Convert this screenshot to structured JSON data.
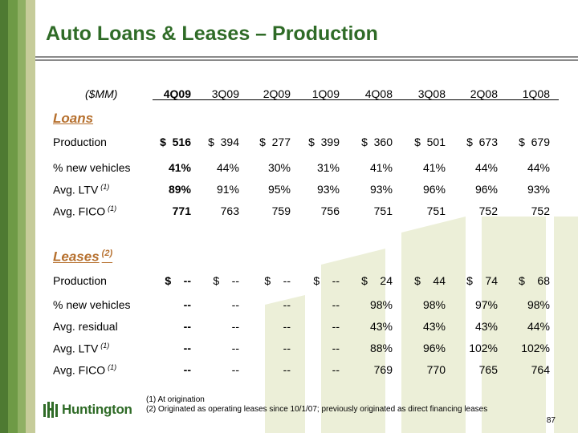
{
  "title": "Auto Loans & Leases – Production",
  "header": {
    "unit_label": "($MM)",
    "columns": [
      "4Q09",
      "3Q09",
      "2Q09",
      "1Q09",
      "4Q08",
      "3Q08",
      "2Q08",
      "1Q08"
    ]
  },
  "loans": {
    "title": "Loans",
    "rows": [
      {
        "label": "Production",
        "fn": "",
        "values": [
          "$  516",
          "$  394",
          "$  277",
          "$  399",
          "$  360",
          "$  501",
          "$  673",
          "$  679"
        ]
      },
      {
        "label": "% new vehicles",
        "fn": "",
        "values": [
          "41%",
          "44%",
          "30%",
          "31%",
          "41%",
          "41%",
          "44%",
          "44%"
        ]
      },
      {
        "label": "Avg. LTV",
        "fn": "(1)",
        "values": [
          "89%",
          "91%",
          "95%",
          "93%",
          "93%",
          "96%",
          "96%",
          "93%"
        ]
      },
      {
        "label": "Avg. FICO",
        "fn": "(1)",
        "values": [
          "771",
          "763",
          "759",
          "756",
          "751",
          "751",
          "752",
          "752"
        ]
      }
    ]
  },
  "leases": {
    "title": "Leases",
    "title_fn": "(2)",
    "rows": [
      {
        "label": "Production",
        "fn": "",
        "values": [
          "$    --",
          "$    --",
          "$    --",
          "$    --",
          "$    24",
          "$    44",
          "$    74",
          "$    68"
        ]
      },
      {
        "label": "% new vehicles",
        "fn": "",
        "values": [
          "--",
          "--",
          "--",
          "--",
          "98%",
          "98%",
          "97%",
          "98%"
        ]
      },
      {
        "label": "Avg. residual",
        "fn": "",
        "values": [
          "--",
          "--",
          "--",
          "--",
          "43%",
          "43%",
          "43%",
          "44%"
        ]
      },
      {
        "label": "Avg. LTV",
        "fn": "(1)",
        "values": [
          "--",
          "--",
          "--",
          "--",
          "88%",
          "96%",
          "102%",
          "102%"
        ]
      },
      {
        "label": "Avg. FICO",
        "fn": "(1)",
        "values": [
          "--",
          "--",
          "--",
          "--",
          "769",
          "770",
          "765",
          "764"
        ]
      }
    ]
  },
  "footnotes": [
    "(1)  At origination",
    "(2)  Originated as operating leases since 10/1/07; previously originated as direct financing leases"
  ],
  "page_number": "87",
  "logo": {
    "text": "Huntington",
    "icon": "huntington-logo-icon"
  },
  "colors": {
    "title": "#2f6b27",
    "section": "#b6702e",
    "sidebar": "#4e7a32"
  }
}
